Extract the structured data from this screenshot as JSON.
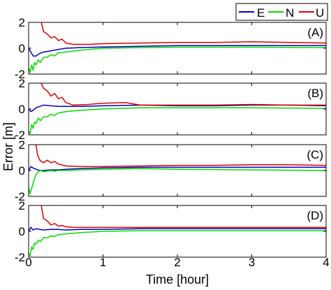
{
  "chart_data": {
    "type": "line",
    "xlabel": "Time [hour]",
    "ylabel": "Error [m]",
    "xlim": [
      0,
      4
    ],
    "ylim": [
      -2,
      2
    ],
    "xticks": [
      "0",
      "1",
      "2",
      "3",
      "4"
    ],
    "yticks": [
      "-2",
      "0",
      "2"
    ],
    "grid": false,
    "legend_position": "top-right, above panels",
    "legend": [
      {
        "name": "E",
        "color": "#0000c0"
      },
      {
        "name": "N",
        "color": "#00dd00"
      },
      {
        "name": "U",
        "color": "#dd0000"
      }
    ],
    "panels": [
      {
        "label": "(A)",
        "series": [
          {
            "name": "E",
            "color": "#0000c0",
            "x": [
              0,
              0.03,
              0.06,
              0.1,
              0.15,
              0.2,
              0.3,
              0.4,
              0.5,
              0.7,
              1,
              1.5,
              2,
              2.5,
              3,
              3.5,
              4
            ],
            "y": [
              0,
              -0.3,
              -0.6,
              -0.6,
              -0.4,
              -0.3,
              -0.2,
              -0.1,
              0,
              0.05,
              0.1,
              0.15,
              0.2,
              0.2,
              0.2,
              0.2,
              0.2
            ]
          },
          {
            "name": "N",
            "color": "#00dd00",
            "x": [
              0,
              0.02,
              0.04,
              0.06,
              0.08,
              0.1,
              0.13,
              0.16,
              0.2,
              0.25,
              0.3,
              0.35,
              0.4,
              0.5,
              0.7,
              1,
              1.5,
              2,
              3,
              4
            ],
            "y": [
              -1.5,
              -1.9,
              -1.3,
              -1.7,
              -1.1,
              -1.3,
              -0.9,
              -1.1,
              -0.7,
              -0.7,
              -0.5,
              -0.6,
              -0.35,
              -0.3,
              -0.15,
              0,
              0.05,
              0.08,
              0.08,
              0.05
            ]
          },
          {
            "name": "U",
            "color": "#dd0000",
            "x": [
              0.17,
              0.2,
              0.25,
              0.3,
              0.35,
              0.4,
              0.45,
              0.5,
              0.6,
              0.8,
              1,
              1.5,
              2,
              2.5,
              3,
              3.5,
              4
            ],
            "y": [
              2,
              1.3,
              1.1,
              0.8,
              0.9,
              0.6,
              0.7,
              0.4,
              0.3,
              0.3,
              0.35,
              0.4,
              0.45,
              0.45,
              0.5,
              0.45,
              0.4
            ]
          }
        ]
      },
      {
        "label": "(B)",
        "series": [
          {
            "name": "E",
            "color": "#0000c0",
            "x": [
              0,
              0.03,
              0.06,
              0.1,
              0.15,
              0.2,
              0.3,
              0.4,
              0.5,
              0.7,
              1,
              1.5,
              2,
              2.5,
              3,
              3.5,
              4
            ],
            "y": [
              0,
              -0.2,
              -0.1,
              0.1,
              0.2,
              0.3,
              0.25,
              0.2,
              0.2,
              0.2,
              0.25,
              0.3,
              0.25,
              0.25,
              0.3,
              0.3,
              0.25
            ]
          },
          {
            "name": "N",
            "color": "#00dd00",
            "x": [
              0,
              0.02,
              0.04,
              0.06,
              0.08,
              0.1,
              0.13,
              0.16,
              0.2,
              0.25,
              0.3,
              0.35,
              0.4,
              0.5,
              0.7,
              1,
              1.5,
              2,
              3,
              4
            ],
            "y": [
              -1.7,
              -1.9,
              -1.2,
              -1.5,
              -1.0,
              -1.1,
              -0.7,
              -0.9,
              -0.6,
              -0.6,
              -0.4,
              -0.5,
              -0.3,
              -0.2,
              -0.1,
              0,
              0.1,
              0.1,
              0.1,
              0.05
            ]
          },
          {
            "name": "U",
            "color": "#dd0000",
            "x": [
              0.17,
              0.2,
              0.25,
              0.3,
              0.35,
              0.4,
              0.45,
              0.5,
              0.6,
              0.8,
              1,
              1.3,
              1.5,
              2,
              2.5,
              3,
              3.5,
              4
            ],
            "y": [
              2,
              1.6,
              1.4,
              1.0,
              1.2,
              0.8,
              0.9,
              0.5,
              0.3,
              0.35,
              0.45,
              0.5,
              0.3,
              0.3,
              0.3,
              0.35,
              0.3,
              0.3
            ]
          }
        ]
      },
      {
        "label": "(C)",
        "series": [
          {
            "name": "E",
            "color": "#0000c0",
            "x": [
              0,
              0.03,
              0.06,
              0.1,
              0.15,
              0.2,
              0.3,
              0.4,
              0.5,
              0.7,
              1,
              1.5,
              2,
              2.5,
              3,
              3.5,
              4
            ],
            "y": [
              0,
              0.3,
              0.2,
              0.1,
              0.0,
              0.0,
              0.05,
              0.05,
              0.1,
              0.15,
              0.2,
              0.25,
              0.25,
              0.25,
              0.25,
              0.25,
              0.25
            ]
          },
          {
            "name": "N",
            "color": "#00dd00",
            "x": [
              0,
              0.02,
              0.04,
              0.06,
              0.08,
              0.1,
              0.13,
              0.16,
              0.2,
              0.25,
              0.3,
              0.35,
              0.4,
              0.5,
              0.7,
              1,
              1.5,
              2,
              3,
              4
            ],
            "y": [
              -1.3,
              -1.8,
              -1.4,
              -1.0,
              -0.6,
              -0.3,
              -0.1,
              0,
              -0.1,
              -0.05,
              0,
              -0.05,
              0,
              0,
              0.05,
              0.1,
              0.15,
              0.1,
              0.05,
              0
            ]
          },
          {
            "name": "U",
            "color": "#dd0000",
            "x": [
              0.1,
              0.12,
              0.15,
              0.2,
              0.25,
              0.3,
              0.35,
              0.4,
              0.5,
              0.7,
              1,
              1.5,
              2,
              2.5,
              3,
              3.5,
              4
            ],
            "y": [
              2,
              1.2,
              0.8,
              0.6,
              0.8,
              0.6,
              0.7,
              0.5,
              0.35,
              0.3,
              0.3,
              0.35,
              0.4,
              0.4,
              0.45,
              0.45,
              0.4
            ]
          }
        ]
      },
      {
        "label": "(D)",
        "series": [
          {
            "name": "E",
            "color": "#0000c0",
            "x": [
              0,
              0.03,
              0.06,
              0.1,
              0.15,
              0.2,
              0.3,
              0.4,
              0.5,
              0.7,
              1,
              1.5,
              2,
              2.5,
              3,
              3.5,
              4
            ],
            "y": [
              0,
              0.3,
              0.1,
              0.2,
              0.15,
              0.1,
              0.15,
              0.15,
              0.1,
              0.15,
              0.15,
              0.2,
              0.2,
              0.2,
              0.2,
              0.2,
              0.2
            ]
          },
          {
            "name": "N",
            "color": "#00dd00",
            "x": [
              0,
              0.02,
              0.04,
              0.06,
              0.08,
              0.1,
              0.13,
              0.16,
              0.2,
              0.25,
              0.3,
              0.35,
              0.4,
              0.5,
              0.7,
              1,
              1.5,
              2,
              3,
              4
            ],
            "y": [
              -1.7,
              -1.9,
              -1.2,
              -1.4,
              -0.9,
              -1.0,
              -0.7,
              -0.8,
              -0.5,
              -0.5,
              -0.35,
              -0.4,
              -0.25,
              -0.2,
              -0.1,
              0,
              0.05,
              0.05,
              0.05,
              0.05
            ]
          },
          {
            "name": "U",
            "color": "#dd0000",
            "x": [
              0.17,
              0.2,
              0.25,
              0.3,
              0.35,
              0.4,
              0.45,
              0.5,
              0.6,
              0.8,
              1,
              1.5,
              2,
              2.5,
              3,
              3.5,
              4
            ],
            "y": [
              2,
              1.0,
              0.8,
              0.5,
              0.6,
              0.4,
              0.45,
              0.35,
              0.3,
              0.3,
              0.3,
              0.3,
              0.3,
              0.3,
              0.3,
              0.3,
              0.3
            ]
          }
        ]
      }
    ]
  }
}
